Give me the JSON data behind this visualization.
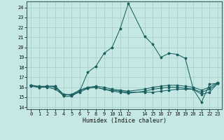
{
  "title": "",
  "xlabel": "Humidex (Indice chaleur)",
  "ylabel": "",
  "bg_color": "#c5e8e5",
  "grid_color": "#aad0cc",
  "line_color": "#1a6060",
  "xlim": [
    -0.5,
    23.5
  ],
  "ylim": [
    13.8,
    24.6
  ],
  "yticks": [
    14,
    15,
    16,
    17,
    18,
    19,
    20,
    21,
    22,
    23,
    24
  ],
  "xtick_positions": [
    0,
    1,
    2,
    3,
    4,
    5,
    6,
    7,
    8,
    9,
    10,
    11,
    12,
    14,
    15,
    16,
    17,
    18,
    19,
    20,
    21,
    22,
    23
  ],
  "xtick_labels": [
    "0",
    "1",
    "2",
    "3",
    "4",
    "5",
    "6",
    "7",
    "8",
    "9",
    "10",
    "11",
    "12",
    "14",
    "15",
    "16",
    "17",
    "18",
    "19",
    "20",
    "21",
    "22",
    "23"
  ],
  "series": [
    {
      "x": [
        0,
        1,
        2,
        3,
        4,
        5,
        6,
        7,
        8,
        9,
        10,
        11,
        12,
        14,
        15,
        16,
        17,
        18,
        19,
        20,
        21,
        22,
        23
      ],
      "y": [
        16.2,
        16.0,
        16.1,
        16.1,
        15.1,
        15.1,
        15.6,
        17.5,
        18.1,
        19.4,
        20.0,
        21.9,
        24.4,
        21.1,
        20.3,
        19.0,
        19.4,
        19.3,
        18.9,
        15.8,
        14.5,
        16.3,
        16.4
      ]
    },
    {
      "x": [
        0,
        1,
        2,
        3,
        4,
        5,
        6,
        7,
        8,
        9,
        10,
        11,
        12,
        14,
        15,
        16,
        17,
        18,
        19,
        20,
        21,
        22,
        23
      ],
      "y": [
        16.1,
        16.0,
        16.0,
        15.8,
        15.2,
        15.3,
        15.7,
        15.9,
        16.0,
        15.8,
        15.7,
        15.6,
        15.5,
        15.5,
        15.5,
        15.6,
        15.7,
        15.8,
        15.8,
        15.8,
        15.3,
        15.5,
        16.4
      ]
    },
    {
      "x": [
        0,
        1,
        2,
        3,
        4,
        5,
        6,
        7,
        8,
        9,
        10,
        11,
        12,
        14,
        15,
        16,
        17,
        18,
        19,
        20,
        21,
        22,
        23
      ],
      "y": [
        16.2,
        16.0,
        16.1,
        16.0,
        15.3,
        15.2,
        15.5,
        15.9,
        16.0,
        15.8,
        15.6,
        15.5,
        15.4,
        15.6,
        15.8,
        15.9,
        16.0,
        16.0,
        15.9,
        15.8,
        15.5,
        15.8,
        16.4
      ]
    },
    {
      "x": [
        0,
        1,
        2,
        3,
        4,
        5,
        6,
        7,
        8,
        9,
        10,
        11,
        12,
        14,
        15,
        16,
        17,
        18,
        19,
        20,
        21,
        22,
        23
      ],
      "y": [
        16.2,
        16.1,
        16.1,
        16.1,
        15.3,
        15.2,
        15.7,
        16.0,
        16.1,
        16.0,
        15.8,
        15.7,
        15.6,
        15.8,
        16.0,
        16.1,
        16.2,
        16.2,
        16.1,
        16.0,
        15.7,
        16.0,
        16.5
      ]
    }
  ]
}
